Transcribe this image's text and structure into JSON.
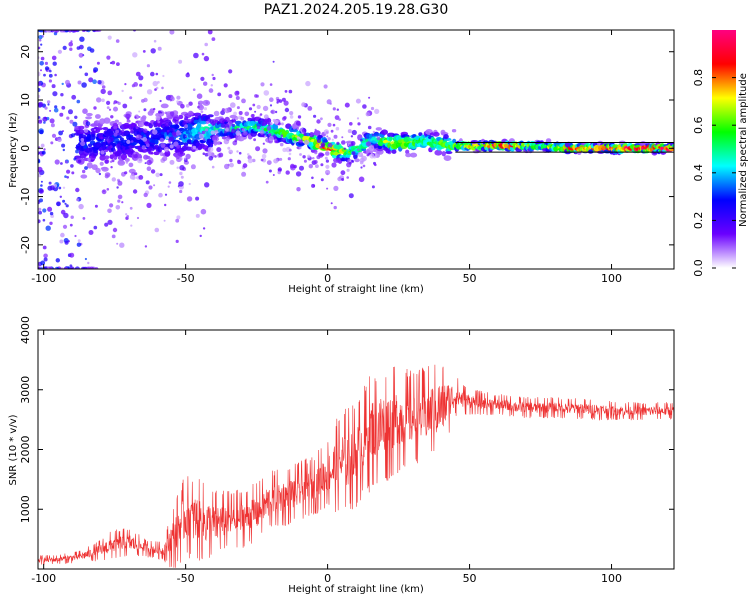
{
  "title": "PAZ1.2024.205.19.28.G30",
  "chart_data": [
    {
      "type": "heatmap",
      "xlabel": "Height of straight line (km)",
      "ylabel": "Frequency (Hz)",
      "xlim": [
        -102,
        122
      ],
      "ylim": [
        -25,
        24.5
      ],
      "xticks": [
        -100,
        -50,
        0,
        50,
        100
      ],
      "yticks": [
        -20,
        -10,
        0,
        10,
        20
      ],
      "xtick_labels": [
        "-100",
        "-50",
        "0",
        "50",
        "100"
      ],
      "ytick_labels": [
        "-20",
        "-10",
        "0",
        "10",
        "20"
      ],
      "colorbar": {
        "label": "Normalized spectral amplitude",
        "range": [
          0,
          1
        ],
        "ticks": [
          0.0,
          0.2,
          0.4,
          0.6,
          0.8
        ],
        "tick_labels": [
          "0.0",
          "0.2",
          "0.4",
          "0.6",
          "0.8"
        ],
        "colormap": [
          "#ffffff",
          "#6a00ff",
          "#0000ff",
          "#00ffff",
          "#00ff00",
          "#ffff00",
          "#ff0000",
          "#ff0080"
        ]
      },
      "ridge": {
        "x": [
          -85,
          -75,
          -65,
          -55,
          -45,
          -35,
          -25,
          -15,
          -5,
          0,
          8,
          16,
          24,
          34,
          45,
          55,
          65,
          75,
          85,
          100,
          122
        ],
        "frequency": [
          1,
          1.5,
          2,
          2.5,
          3.5,
          4,
          4.5,
          3,
          1.5,
          0,
          -1,
          2,
          1,
          1.5,
          0.5,
          0.5,
          0.5,
          0.5,
          0,
          0,
          0
        ],
        "amplitude": [
          0.3,
          0.3,
          0.3,
          0.35,
          0.45,
          0.5,
          0.5,
          0.6,
          0.75,
          0.85,
          0.6,
          0.5,
          0.75,
          0.55,
          0.65,
          0.9,
          0.9,
          0.6,
          0.9,
          0.95,
          0.95
        ]
      },
      "model_lines_hz": [
        1.2,
        -0.8
      ],
      "model_lines_xlim": [
        45,
        122
      ]
    },
    {
      "type": "line",
      "xlabel": "Height of straight line (km)",
      "ylabel": "SNR (10 * v/v)",
      "xlim": [
        -102,
        122
      ],
      "ylim": [
        0,
        4000
      ],
      "xticks": [
        -100,
        -50,
        0,
        50,
        100
      ],
      "yticks": [
        1000,
        2000,
        3000,
        4000
      ],
      "xtick_labels": [
        "-100",
        "-50",
        "0",
        "50",
        "100"
      ],
      "ytick_labels": [
        "1000",
        "2000",
        "3000",
        "4000"
      ],
      "color": "#ee3333",
      "series": [
        {
          "x": [
            -102,
            -95,
            -88,
            -82,
            -76,
            -70,
            -64,
            -58,
            -54,
            -50,
            -45,
            -40,
            -35,
            -30,
            -25,
            -20,
            -15,
            -10,
            -5,
            0,
            5,
            10,
            15,
            20,
            25,
            30,
            35,
            40,
            45,
            50,
            60,
            70,
            80,
            90,
            100,
            110,
            122
          ],
          "mean": [
            150,
            160,
            200,
            280,
            400,
            450,
            350,
            300,
            550,
            900,
            800,
            750,
            820,
            850,
            950,
            1150,
            1200,
            1300,
            1400,
            1600,
            1800,
            1900,
            2300,
            2400,
            2500,
            2550,
            2600,
            2700,
            2900,
            2800,
            2750,
            2700,
            2700,
            2680,
            2650,
            2640,
            2650
          ],
          "spread": [
            80,
            80,
            100,
            150,
            250,
            250,
            150,
            150,
            600,
            700,
            700,
            600,
            500,
            500,
            500,
            500,
            500,
            500,
            500,
            600,
            900,
            900,
            1000,
            1000,
            900,
            800,
            800,
            800,
            350,
            220,
            180,
            180,
            180,
            180,
            160,
            150,
            150
          ]
        }
      ]
    }
  ]
}
